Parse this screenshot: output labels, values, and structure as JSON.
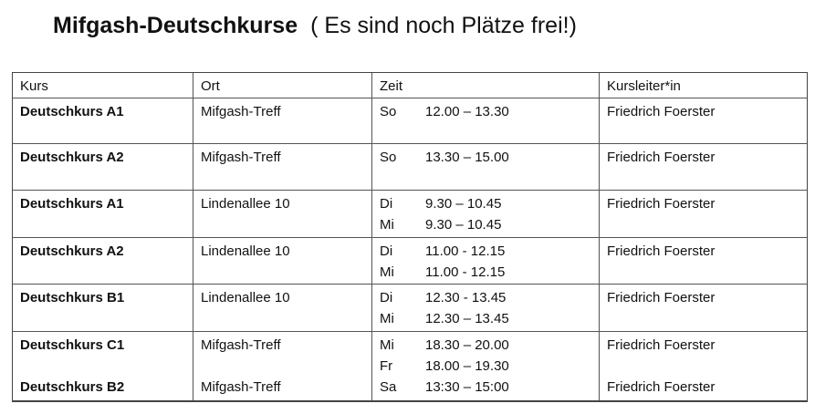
{
  "title": {
    "main": "Mifgash-Deutschkurse",
    "sub": "( Es sind noch Plätze frei!)"
  },
  "table": {
    "headers": [
      "Kurs",
      "Ort",
      "Zeit",
      "Kursleiter*in"
    ],
    "rows": [
      {
        "kurs": [
          "Deutschkurs A1"
        ],
        "ort": [
          "Mifgash-Treff"
        ],
        "zeit": [
          {
            "day": "So",
            "time": "12.00 – 13.30"
          }
        ],
        "leiter": [
          "Friedrich Foerster"
        ]
      },
      {
        "kurs": [
          "Deutschkurs A2"
        ],
        "ort": [
          "Mifgash-Treff"
        ],
        "zeit": [
          {
            "day": "So",
            "time": "13.30 – 15.00"
          }
        ],
        "leiter": [
          "Friedrich Foerster"
        ]
      },
      {
        "kurs": [
          "Deutschkurs A1"
        ],
        "ort": [
          "Lindenallee 10"
        ],
        "zeit": [
          {
            "day": "Di",
            "time": "9.30 – 10.45"
          },
          {
            "day": "Mi",
            "time": "9.30 – 10.45"
          }
        ],
        "leiter": [
          "Friedrich Foerster"
        ]
      },
      {
        "kurs": [
          "Deutschkurs A2"
        ],
        "ort": [
          "Lindenallee 10"
        ],
        "zeit": [
          {
            "day": "Di",
            "time": "11.00 - 12.15"
          },
          {
            "day": "Mi",
            "time": "11.00 - 12.15"
          }
        ],
        "leiter": [
          "Friedrich Foerster"
        ]
      },
      {
        "kurs": [
          "Deutschkurs B1"
        ],
        "ort": [
          "Lindenallee 10"
        ],
        "zeit": [
          {
            "day": "Di",
            "time": "12.30 - 13.45"
          },
          {
            "day": "Mi",
            "time": "12.30 – 13.45"
          }
        ],
        "leiter": [
          "Friedrich Foerster"
        ]
      },
      {
        "kurs": [
          "Deutschkurs C1",
          "",
          "Deutschkurs B2"
        ],
        "ort": [
          "Mifgash-Treff",
          "",
          "Mifgash-Treff"
        ],
        "zeit": [
          {
            "day": "Mi",
            "time": "18.30 – 20.00"
          },
          {
            "day": "Fr",
            "time": "18.00 – 19.30"
          },
          {
            "day": "Sa",
            "time": "13:30 – 15:00"
          }
        ],
        "leiter": [
          "Friedrich Foerster",
          "",
          "Friedrich Foerster"
        ]
      }
    ]
  }
}
